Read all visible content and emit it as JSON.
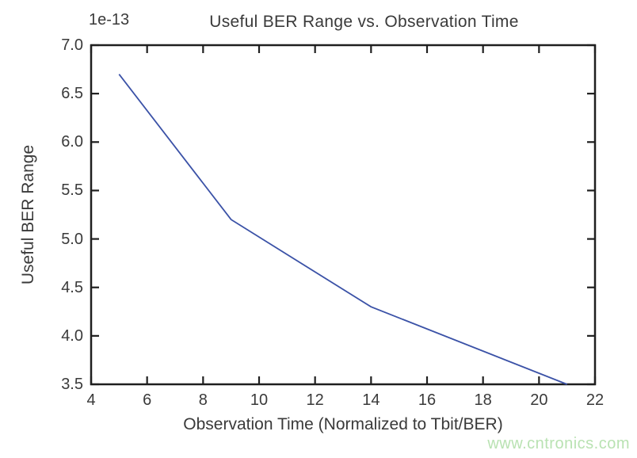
{
  "chart_data": {
    "type": "line",
    "title": "Useful BER Range vs. Observation Time",
    "xlabel": "Observation Time (Normalized to Tbit/BER)",
    "ylabel": "Useful BER Range",
    "y_offset_label": "1e-13",
    "y_scale_factor": 1e-13,
    "series": [
      {
        "name": "Useful BER Range",
        "x": [
          5,
          9,
          14,
          21
        ],
        "y": [
          6.7,
          5.2,
          4.3,
          3.5
        ]
      }
    ],
    "xlim": [
      4,
      22
    ],
    "ylim": [
      3.5,
      7.0
    ],
    "x_ticks": [
      4,
      6,
      8,
      10,
      12,
      14,
      16,
      18,
      20,
      22
    ],
    "x_tick_labels": [
      "4",
      "6",
      "8",
      "10",
      "12",
      "14",
      "16",
      "18",
      "20",
      "22"
    ],
    "y_ticks": [
      3.5,
      4.0,
      4.5,
      5.0,
      5.5,
      6.0,
      6.5,
      7.0
    ],
    "y_tick_labels": [
      "3.5",
      "4.0",
      "4.5",
      "5.0",
      "5.5",
      "6.0",
      "6.5",
      "7.0"
    ],
    "grid": false,
    "legend": null,
    "line_color": "#3b52a7",
    "axis_color": "#1f1f1f",
    "tick_direction": "in",
    "box": true
  },
  "watermark": {
    "text": "www.cntronics.com",
    "color": "#b9e2b2"
  }
}
